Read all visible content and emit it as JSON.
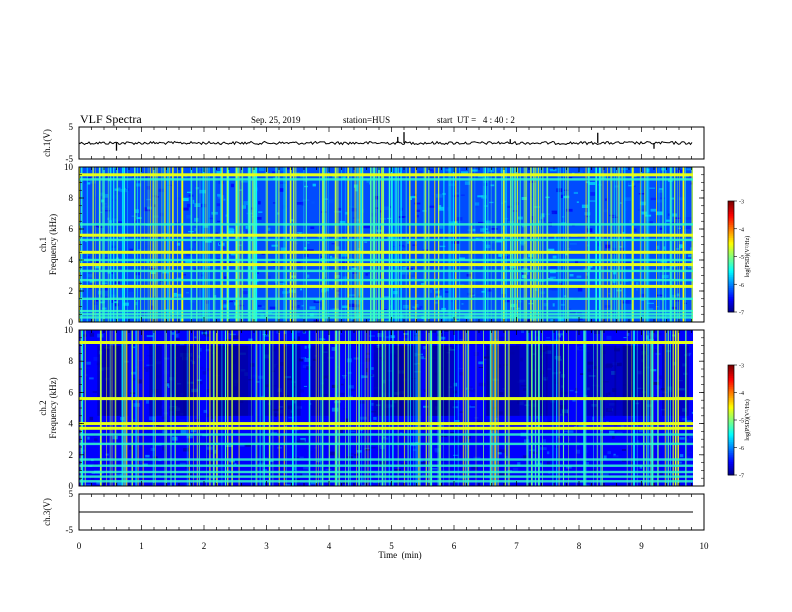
{
  "header": {
    "title": "VLF Spectra",
    "date": "Sep. 25, 2019",
    "station": "station=HUS",
    "start": "start  UT =   4 : 40 : 2"
  },
  "colorbar": {
    "label": "log(PSD)(V²/Hz)",
    "ticks": [
      "-3",
      "-4",
      "-5",
      "-6",
      "-7"
    ]
  },
  "chart_data": [
    {
      "type": "line",
      "name": "ch1-waveform",
      "ylabel": "ch.1(V)",
      "ylim": [
        -5,
        5
      ],
      "yticks": [
        "5",
        "-5"
      ],
      "xlim": [
        0,
        10
      ],
      "baseline": 0,
      "spikes": [
        {
          "x": 0.6,
          "y": -2.4
        },
        {
          "x": 5.1,
          "y": 1.9
        },
        {
          "x": 5.2,
          "y": 3.4
        },
        {
          "x": 6.9,
          "y": 1.2
        },
        {
          "x": 8.3,
          "y": 3.2
        },
        {
          "x": 9.2,
          "y": -1.8
        }
      ]
    },
    {
      "type": "heatmap",
      "name": "ch1-spectrogram",
      "ylabel": "ch.1\nFrequency (kHz)",
      "ylim": [
        0,
        10
      ],
      "yticks": [
        "0",
        "2",
        "4",
        "6",
        "8",
        "10"
      ],
      "xlim": [
        0,
        10
      ],
      "colormap": "jet",
      "zlim": [
        -7,
        -3
      ],
      "background_level": -6.2,
      "tone_lines_khz": [
        0.3,
        0.5,
        0.7,
        1.5,
        2.3,
        2.7,
        3.3,
        3.7,
        4.0,
        4.5,
        5.3,
        5.6,
        6.3,
        9.2,
        9.5
      ],
      "bright_tones_khz": [
        2.3,
        3.7,
        4.5,
        5.6,
        9.5
      ]
    },
    {
      "type": "heatmap",
      "name": "ch2-spectrogram",
      "ylabel": "ch.2\nFrequency (kHz)",
      "ylim": [
        0,
        10
      ],
      "yticks": [
        "0",
        "2",
        "4",
        "6",
        "8",
        "10"
      ],
      "xlim": [
        0,
        10
      ],
      "colormap": "jet",
      "zlim": [
        -7,
        -3
      ],
      "background_level": -6.5,
      "tone_lines_khz": [
        0.3,
        0.6,
        0.9,
        1.3,
        1.7,
        2.7,
        3.3,
        4.0,
        5.6,
        9.2
      ],
      "bright_tones_khz": [
        3.7,
        4.0,
        5.6,
        9.2
      ]
    },
    {
      "type": "line",
      "name": "ch3-waveform",
      "ylabel": "ch.3(V)",
      "ylim": [
        -5,
        5
      ],
      "yticks": [
        "5",
        "-5"
      ],
      "xlim": [
        0,
        10
      ],
      "baseline": 0,
      "xlabel": "Time  (min)",
      "xticks": [
        "0",
        "1",
        "2",
        "3",
        "4",
        "5",
        "6",
        "7",
        "8",
        "9",
        "10"
      ]
    }
  ]
}
